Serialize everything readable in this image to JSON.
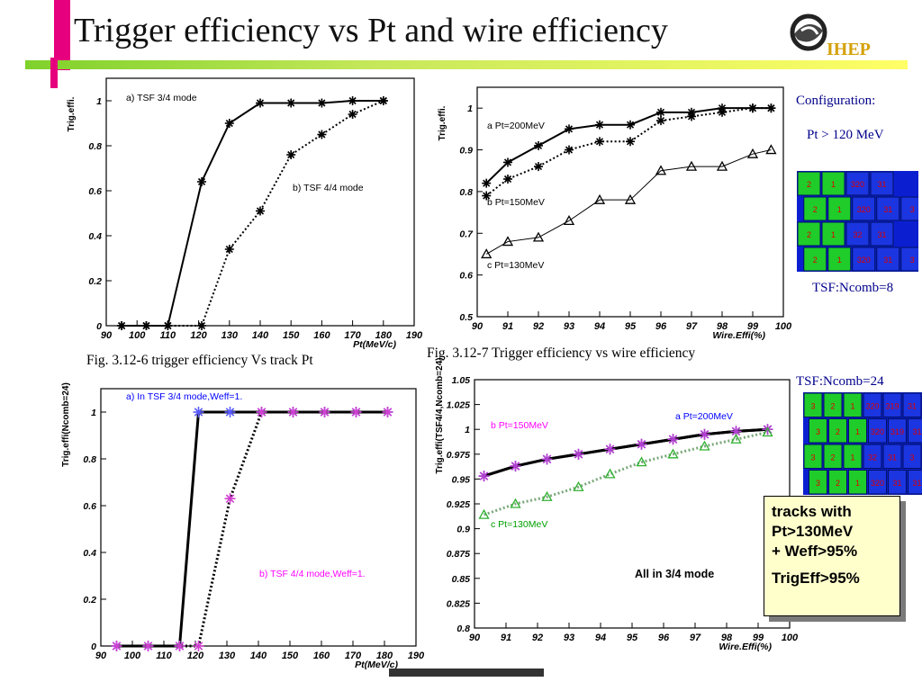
{
  "title": "Trigger efficiency vs Pt and wire efficiency",
  "logo": {
    "text": "IHEP",
    "icon": "ihep-swirl-logo"
  },
  "colors": {
    "accent_magenta": "#e6007e",
    "accent_green": "#7fd12b",
    "accent_yellow": "#ffff66",
    "navy": "#00008b"
  },
  "captions": {
    "fig1": "Fig. 3.12-6 trigger efficiency Vs track Pt",
    "fig2": "Fig. 3.12-7 Trigger efficiency vs wire efficiency"
  },
  "side": {
    "config_label": "Configuration:",
    "pt_cut": "Pt > 120 MeV",
    "ncomb8": "TSF:Ncomb=8",
    "ncomb24": "TSF:Ncomb=24",
    "grid8_rows": [
      [
        "2",
        "1",
        "320",
        "31"
      ],
      [
        "2",
        "1",
        "320",
        "31",
        "3"
      ],
      [
        "2",
        "1",
        "32",
        "31"
      ],
      [
        "2",
        "1",
        "320",
        "31",
        "3"
      ]
    ],
    "grid24_rows": [
      [
        "3",
        "2",
        "1",
        "320",
        "319",
        "31"
      ],
      [
        "3",
        "2",
        "1",
        "320",
        "319",
        "31"
      ],
      [
        "3",
        "2",
        "1",
        "32",
        "31",
        "3"
      ],
      [
        "3",
        "2",
        "1",
        "320",
        "31",
        "31"
      ]
    ]
  },
  "callout": {
    "line1": "tracks with",
    "line2": "Pt>130MeV",
    "line3": "+ Weff>95%",
    "line4": "TrigEff>95%"
  },
  "chart_data": [
    {
      "type": "line",
      "panel": "top-left",
      "xlabel": "Pt(MeV/c)",
      "ylabel": "Trig.effi.",
      "xlim": [
        90,
        190
      ],
      "ylim": [
        0,
        1.1
      ],
      "xticks": [
        "90",
        "100",
        "110",
        "120",
        "130",
        "140",
        "150",
        "160",
        "170",
        "180",
        "190"
      ],
      "yticks": [
        "0",
        "0.2",
        "0.4",
        "0.6",
        "0.8",
        "1"
      ],
      "series": [
        {
          "name": "a) TSF 3/4 mode",
          "style": "solid",
          "x": [
            95,
            103,
            110,
            121,
            130,
            140,
            150,
            160,
            170,
            180
          ],
          "y": [
            0,
            0,
            0,
            0.64,
            0.9,
            0.99,
            0.99,
            0.99,
            1,
            1
          ]
        },
        {
          "name": "b) TSF 4/4 mode",
          "style": "dotted",
          "x": [
            95,
            103,
            110,
            121,
            130,
            140,
            150,
            160,
            170,
            180
          ],
          "y": [
            0,
            0,
            0,
            0,
            0.34,
            0.51,
            0.76,
            0.85,
            0.94,
            1
          ]
        }
      ]
    },
    {
      "type": "line",
      "panel": "top-right",
      "xlabel": "Wire.Effi(%)",
      "ylabel": "Trig.effi.",
      "xlim": [
        90,
        100
      ],
      "ylim": [
        0.5,
        1.05
      ],
      "xticks": [
        "90",
        "91",
        "92",
        "93",
        "94",
        "95",
        "96",
        "97",
        "98",
        "99",
        "100"
      ],
      "yticks": [
        "0.5",
        "0.6",
        "0.7",
        "0.8",
        "0.9",
        "1"
      ],
      "series": [
        {
          "name": "Pt=200MeV",
          "label": "a",
          "style": "solid",
          "x": [
            90.3,
            91,
            92,
            93,
            94,
            95,
            96,
            97,
            98,
            99,
            99.6
          ],
          "y": [
            0.82,
            0.87,
            0.91,
            0.95,
            0.96,
            0.96,
            0.99,
            0.99,
            1,
            1,
            1
          ]
        },
        {
          "name": "Pt=150MeV",
          "label": "b",
          "style": "dotted",
          "x": [
            90.3,
            91,
            92,
            93,
            94,
            95,
            96,
            97,
            98,
            99,
            99.6
          ],
          "y": [
            0.79,
            0.83,
            0.86,
            0.9,
            0.92,
            0.92,
            0.97,
            0.98,
            0.99,
            1,
            1
          ]
        },
        {
          "name": "Pt=130MeV",
          "label": "c",
          "style": "thin",
          "x": [
            90.3,
            91,
            92,
            93,
            94,
            95,
            96,
            97,
            98,
            99,
            99.6
          ],
          "y": [
            0.65,
            0.68,
            0.69,
            0.73,
            0.78,
            0.78,
            0.85,
            0.86,
            0.86,
            0.89,
            0.9
          ]
        }
      ]
    },
    {
      "type": "line",
      "panel": "bottom-left",
      "xlabel": "Pt(MeV/c)",
      "ylabel": "Trig.effi(Ncomb=24)",
      "xlim": [
        90,
        190
      ],
      "ylim": [
        0,
        1.1
      ],
      "xticks": [
        "90",
        "100",
        "110",
        "120",
        "130",
        "140",
        "150",
        "160",
        "170",
        "180",
        "190"
      ],
      "yticks": [
        "0",
        "0.2",
        "0.4",
        "0.6",
        "0.8",
        "1"
      ],
      "series": [
        {
          "name": "a) In TSF 3/4 mode,Weff=1.",
          "style": "solid",
          "x": [
            95,
            105,
            115,
            121,
            131,
            141,
            151,
            161,
            171,
            181
          ],
          "y": [
            0,
            0,
            0,
            1,
            1,
            1,
            1,
            1,
            1,
            1
          ]
        },
        {
          "name": "b) TSF 4/4 mode,Weff=1.",
          "style": "dotted",
          "x": [
            95,
            105,
            115,
            121,
            131,
            141,
            151,
            161,
            171,
            181
          ],
          "y": [
            0,
            0,
            0,
            0,
            0.63,
            1,
            1,
            1,
            1,
            1
          ]
        }
      ]
    },
    {
      "type": "line",
      "panel": "bottom-right",
      "xlabel": "Wire.Effi(%)",
      "ylabel": "Trig.effi(TSF4/4,Ncomb=24)",
      "annotation": "All in 3/4 mode",
      "xlim": [
        90,
        100
      ],
      "ylim": [
        0.8,
        1.05
      ],
      "xticks": [
        "90",
        "91",
        "92",
        "93",
        "94",
        "95",
        "96",
        "97",
        "98",
        "99",
        "100"
      ],
      "yticks": [
        "0.8",
        "0.825",
        "0.85",
        "0.875",
        "0.9",
        "0.925",
        "0.95",
        "0.975",
        "1",
        "1.025",
        "1.05"
      ],
      "series": [
        {
          "name": "a Pt=200MeV",
          "style": "solid",
          "x": [
            90.3,
            91.3,
            92.3,
            93.3,
            94.3,
            95.3,
            96.3,
            97.3,
            98.3,
            99.3
          ],
          "y": [
            0.953,
            0.963,
            0.97,
            0.975,
            0.98,
            0.985,
            0.99,
            0.995,
            0.998,
            1
          ]
        },
        {
          "name": "b Pt=150MeV",
          "style": "solid",
          "x": [
            90.3,
            91.3,
            92.3,
            93.3,
            94.3,
            95.3,
            96.3,
            97.3,
            98.3,
            99.3
          ],
          "y": [
            0.953,
            0.963,
            0.97,
            0.975,
            0.98,
            0.985,
            0.99,
            0.995,
            0.998,
            1
          ]
        },
        {
          "name": "c Pt=130MeV",
          "style": "dotted",
          "x": [
            90.3,
            91.3,
            92.3,
            93.3,
            94.3,
            95.3,
            96.3,
            97.3,
            98.3,
            99.3
          ],
          "y": [
            0.914,
            0.925,
            0.932,
            0.942,
            0.955,
            0.967,
            0.975,
            0.983,
            0.99,
            0.997
          ]
        }
      ]
    }
  ]
}
